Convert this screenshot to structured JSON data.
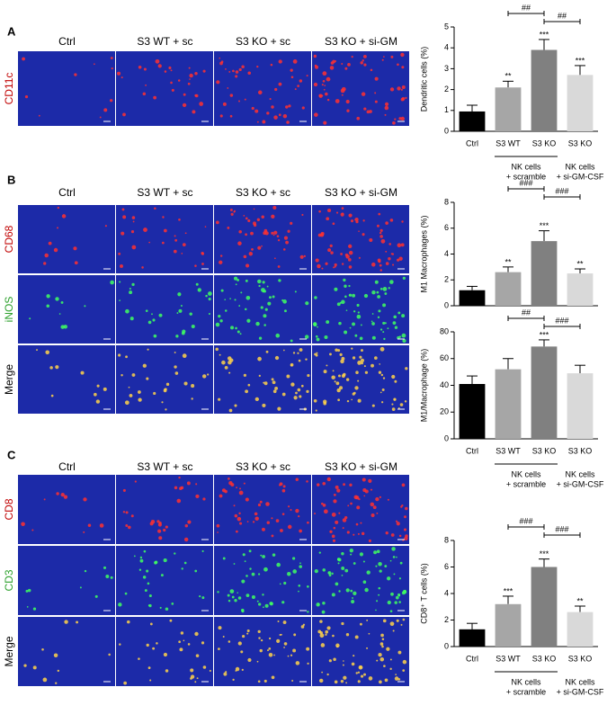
{
  "panels": [
    {
      "label": "A",
      "columns": [
        "Ctrl",
        "S3 WT + sc",
        "S3 KO + sc",
        "S3 KO + si-GM"
      ],
      "rows": [
        {
          "label": "CD11c",
          "color": "#c00000"
        }
      ]
    },
    {
      "label": "B",
      "columns": [
        "Ctrl",
        "S3 WT + sc",
        "S3 KO + sc",
        "S3 KO + si-GM"
      ],
      "rows": [
        {
          "label": "CD68",
          "color": "#c00000"
        },
        {
          "label": "iNOS",
          "color": "#2ca02c"
        },
        {
          "label": "Merge",
          "color": "#000000"
        }
      ]
    },
    {
      "label": "C",
      "columns": [
        "Ctrl",
        "S3 WT + sc",
        "S3 KO + sc",
        "S3 KO + si-GM"
      ],
      "rows": [
        {
          "label": "CD8",
          "color": "#c00000"
        },
        {
          "label": "CD3",
          "color": "#2ca02c"
        },
        {
          "label": "Merge",
          "color": "#000000"
        }
      ]
    }
  ],
  "chart_data": [
    {
      "type": "bar",
      "ylabel": "Dendritic cells (%)",
      "categories": [
        "Ctrl",
        "S3 WT",
        "S3 KO",
        "S3 KO"
      ],
      "series": [
        {
          "values": [
            0.95,
            2.1,
            3.9,
            2.7
          ],
          "errors": [
            0.3,
            0.3,
            0.5,
            0.45
          ],
          "colors": [
            "#000000",
            "#a6a6a6",
            "#808080",
            "#d9d9d9"
          ]
        }
      ],
      "annotations": [
        null,
        "**",
        "***",
        "***"
      ],
      "brackets": [
        {
          "from": 1,
          "to": 2,
          "label": "##"
        },
        {
          "from": 2,
          "to": 3,
          "label": "##"
        }
      ],
      "groups": [
        {
          "lines": [
            "NK cells",
            "+ scramble"
          ],
          "categories": [
            1,
            2
          ]
        },
        {
          "lines": [
            "NK cells",
            "+ si-GM-CSF"
          ],
          "categories": [
            3
          ]
        }
      ],
      "ylim": [
        0,
        5
      ],
      "yticks": [
        0,
        1,
        2,
        3,
        4,
        5
      ]
    },
    {
      "type": "bar",
      "ylabel": "M1 Macrophages (%)",
      "categories": [
        null,
        null,
        null,
        null
      ],
      "series": [
        {
          "values": [
            1.2,
            2.6,
            5.0,
            2.5
          ],
          "errors": [
            0.3,
            0.4,
            0.8,
            0.35
          ],
          "colors": [
            "#000000",
            "#a6a6a6",
            "#808080",
            "#d9d9d9"
          ]
        }
      ],
      "annotations": [
        null,
        "**",
        "***",
        "**"
      ],
      "brackets": [
        {
          "from": 1,
          "to": 2,
          "label": "###"
        },
        {
          "from": 2,
          "to": 3,
          "label": "###"
        }
      ],
      "ylim": [
        0,
        8
      ],
      "yticks": [
        0,
        2,
        4,
        6,
        8
      ]
    },
    {
      "type": "bar",
      "ylabel": "M1/Macrophage (%)",
      "categories": [
        "Ctrl",
        "S3 WT",
        "S3 KO",
        "S3 KO"
      ],
      "series": [
        {
          "values": [
            41,
            52,
            69,
            49
          ],
          "errors": [
            6,
            8,
            5,
            6
          ],
          "colors": [
            "#000000",
            "#a6a6a6",
            "#808080",
            "#d9d9d9"
          ]
        }
      ],
      "annotations": [
        null,
        null,
        "***",
        null
      ],
      "brackets": [
        {
          "from": 1,
          "to": 2,
          "label": "##"
        },
        {
          "from": 2,
          "to": 3,
          "label": "###"
        }
      ],
      "groups": [
        {
          "lines": [
            "NK cells",
            "+ scramble"
          ],
          "categories": [
            1,
            2
          ]
        },
        {
          "lines": [
            "NK cells",
            "+ si-GM-CSF"
          ],
          "categories": [
            3
          ]
        }
      ],
      "ylim": [
        0,
        80
      ],
      "yticks": [
        0,
        20,
        40,
        60,
        80
      ]
    },
    {
      "type": "bar",
      "ylabel": "CD8⁺ T cells (%)",
      "categories": [
        "Ctrl",
        "S3 WT",
        "S3 KO",
        "S3 KO"
      ],
      "series": [
        {
          "values": [
            1.3,
            3.2,
            6.0,
            2.6
          ],
          "errors": [
            0.45,
            0.6,
            0.6,
            0.45
          ],
          "colors": [
            "#000000",
            "#a6a6a6",
            "#808080",
            "#d9d9d9"
          ]
        }
      ],
      "annotations": [
        null,
        "***",
        "***",
        "**"
      ],
      "brackets": [
        {
          "from": 1,
          "to": 2,
          "label": "###"
        },
        {
          "from": 2,
          "to": 3,
          "label": "###"
        }
      ],
      "groups": [
        {
          "lines": [
            "NK cells",
            "+ scramble"
          ],
          "categories": [
            1,
            2
          ]
        },
        {
          "lines": [
            "NK cells",
            "+ si-GM-CSF"
          ],
          "categories": [
            3
          ]
        }
      ],
      "ylim": [
        0,
        8
      ],
      "yticks": [
        0,
        2,
        4,
        6,
        8
      ]
    }
  ]
}
